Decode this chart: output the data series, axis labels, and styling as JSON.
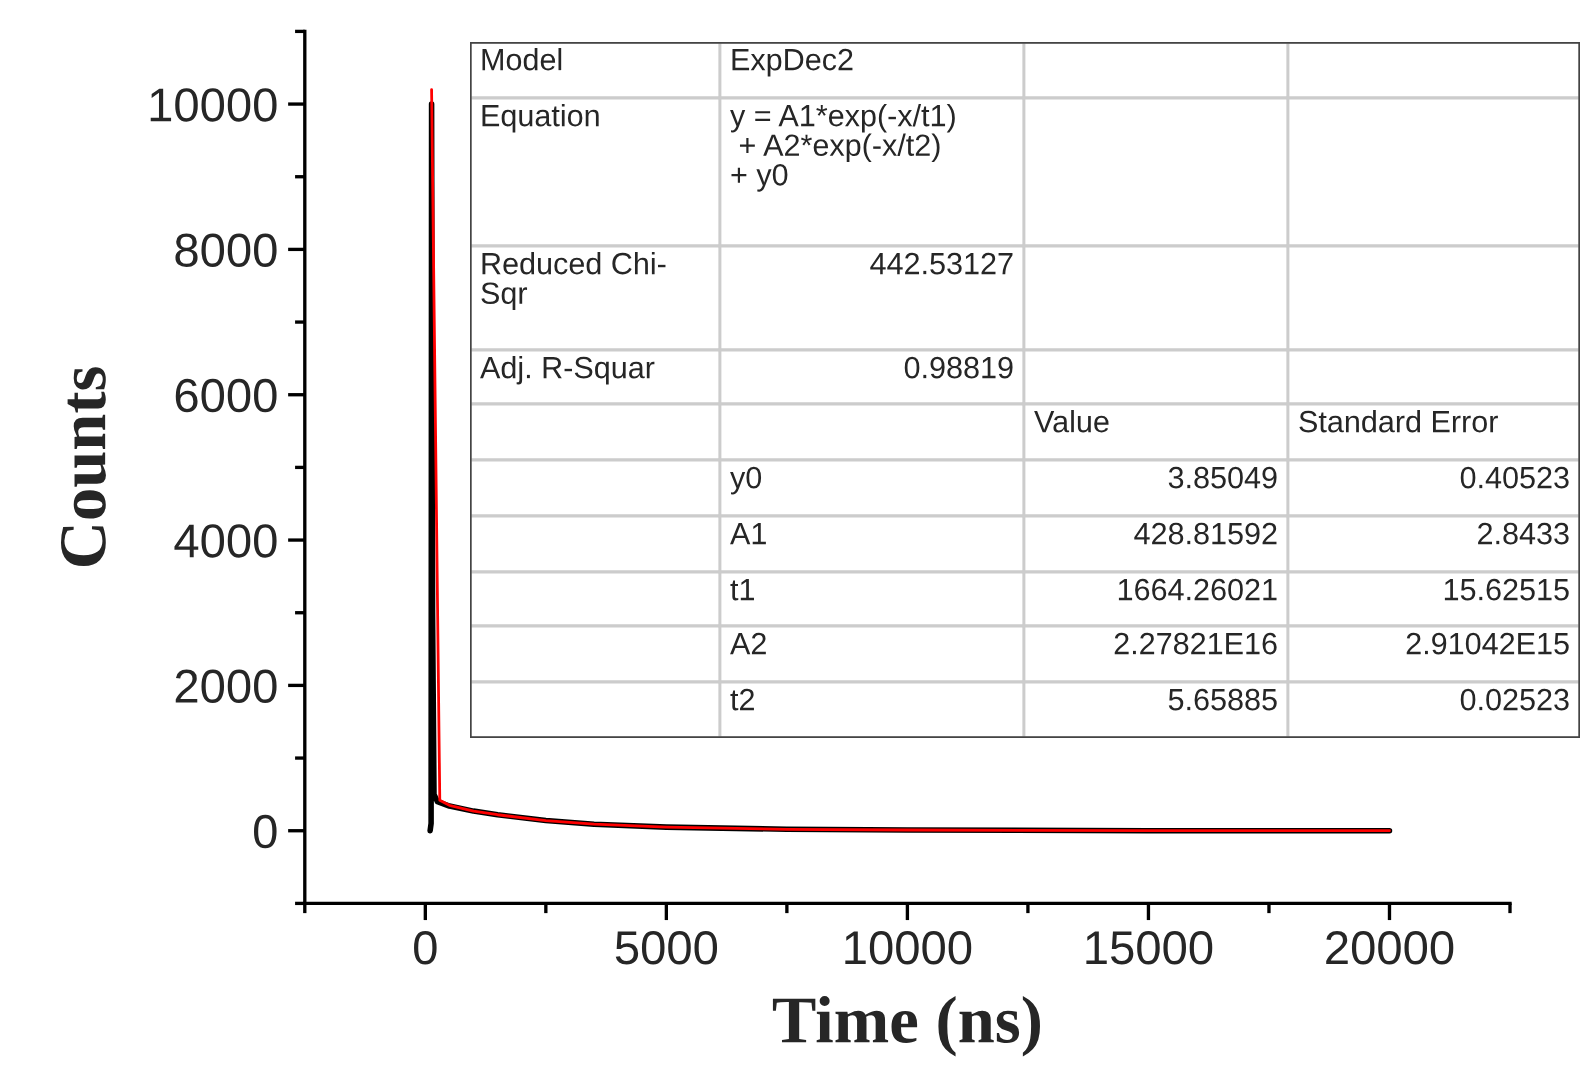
{
  "chart_data": {
    "type": "line",
    "xlabel": "Time (ns)",
    "ylabel": "Counts",
    "series": [
      {
        "color": "#000000",
        "x": [
          100,
          120,
          130,
          150,
          180,
          250,
          500,
          1000,
          1500,
          2500,
          3500,
          5000,
          7500,
          10000,
          15000,
          20000
        ],
        "values": [
          0,
          100,
          10000,
          3000,
          500,
          400,
          340,
          270,
          220,
          140,
          90,
          50,
          20,
          10,
          0,
          0
        ]
      },
      {
        "color": "#ff0000",
        "x": [
          130,
          300,
          500,
          1000,
          1500,
          2500,
          3500,
          5000,
          7500,
          10000,
          15000,
          20000
        ],
        "values": [
          10200,
          420,
          350,
          270,
          220,
          140,
          90,
          50,
          20,
          10,
          0,
          0
        ]
      }
    ],
    "xlim": [
      -2500,
      22500
    ],
    "ylim": [
      -1000,
      11000
    ],
    "xticks": [
      {
        "value": -2500,
        "label": null
      },
      0,
      {
        "value": 2500,
        "label": null
      },
      5000,
      {
        "value": 7500,
        "label": null
      },
      10000,
      {
        "value": 12500,
        "label": null
      },
      15000,
      {
        "value": 17500,
        "label": null
      },
      20000,
      {
        "value": 22500,
        "label": null
      }
    ],
    "yticks": [
      {
        "value": -1000,
        "label": null
      },
      0,
      {
        "value": 1000,
        "label": null
      },
      2000,
      {
        "value": 3000,
        "label": null
      },
      4000,
      {
        "value": 5000,
        "label": null
      },
      6000,
      {
        "value": 7000,
        "label": null
      },
      8000,
      {
        "value": 9000,
        "label": null
      },
      10000,
      {
        "value": 11000,
        "label": null
      }
    ],
    "grid": false,
    "annotations": [
      "Model",
      "ExpDec2",
      "Equation",
      "y = A1*exp(-x/t1)\n + A2*exp(-x/t2)\n+ y0",
      "Reduced Chi-\nSqr",
      "442.53127",
      "Adj. R-Squar",
      "0.98819",
      "Value",
      "Standard Error",
      "y0",
      "3.85049",
      "0.40523",
      "A1",
      "428.81592",
      "2.8433",
      "t1",
      "1664.26021",
      "15.62515",
      "A2",
      "2.27821E16",
      "2.91042E15",
      "t2",
      "5.65885",
      "0.02523"
    ]
  }
}
